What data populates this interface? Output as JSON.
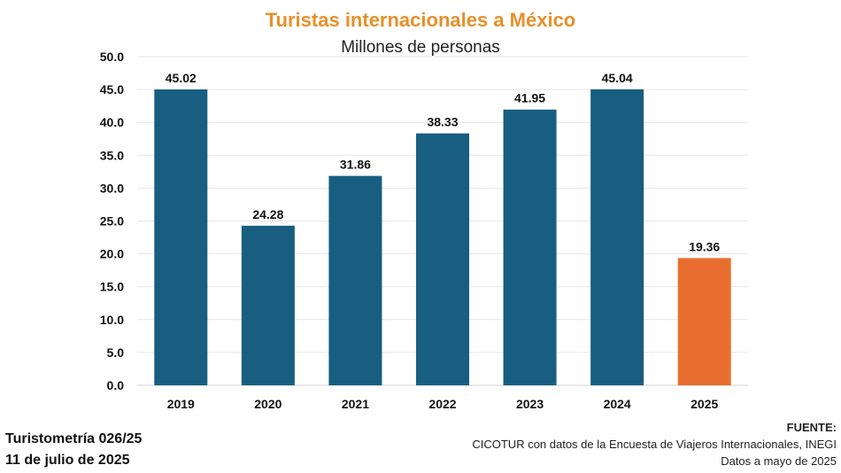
{
  "chart_data": {
    "type": "bar",
    "title": "Turistas internacionales a México",
    "subtitle": "Millones de personas",
    "categories": [
      "2019",
      "2020",
      "2021",
      "2022",
      "2023",
      "2024",
      "2025"
    ],
    "values": [
      45.02,
      24.28,
      31.86,
      38.33,
      41.95,
      45.04,
      19.36
    ],
    "value_labels": [
      "45.02",
      "24.28",
      "31.86",
      "38.33",
      "41.95",
      "45.04",
      "19.36"
    ],
    "y_ticks": [
      "0.0",
      "5.0",
      "10.0",
      "15.0",
      "20.0",
      "25.0",
      "30.0",
      "35.0",
      "40.0",
      "45.0",
      "50.0"
    ],
    "ylim": [
      0,
      50
    ],
    "xlabel": "",
    "ylabel": "",
    "grid": true,
    "colors": {
      "bar": "#175e80",
      "highlight": "#e86f30",
      "grid": "#e6e6e6"
    },
    "highlight_index": 6
  },
  "footer": {
    "left_line1": "Turistometría 026/25",
    "left_line2": "11 de julio de 2025",
    "source_label": "FUENTE:",
    "source_line1": "CICOTUR con datos de la Encuesta de Viajeros Internacionales, INEGI",
    "source_line2": "Datos a mayo de 2025"
  }
}
